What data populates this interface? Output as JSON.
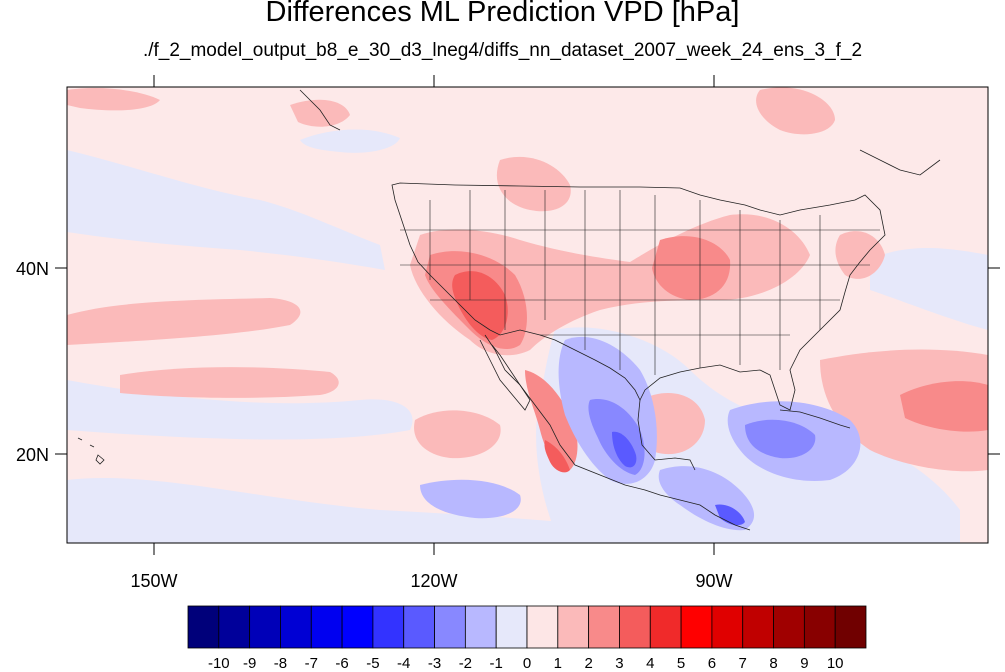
{
  "title": "Differences ML Prediction VPD [hPa]",
  "subtitle": "./f_2_model_output_b8_e_30_d3_lneg4/diffs_nn_dataset_2007_week_24_ens_3_f_2",
  "lat_labels": [
    "40N",
    "20N"
  ],
  "lon_labels": [
    "150W",
    "120W",
    "90W"
  ],
  "colorbar": {
    "labels": [
      "-10",
      "-9",
      "-8",
      "-7",
      "-6",
      "-5",
      "-4",
      "-3",
      "-2",
      "-1",
      "0",
      "1",
      "2",
      "3",
      "4",
      "5",
      "6",
      "7",
      "8",
      "9",
      "10"
    ],
    "colors": [
      "#00007a",
      "#00009a",
      "#0000b8",
      "#0000d4",
      "#0000f0",
      "#0000ff",
      "#3333ff",
      "#5a5aff",
      "#8888ff",
      "#b8b8ff",
      "#e6e8fa",
      "#fde6e6",
      "#fbbaba",
      "#f88a8a",
      "#f45c5c",
      "#f02a2a",
      "#ff0000",
      "#e00000",
      "#c00000",
      "#a00000",
      "#880000",
      "#700000"
    ]
  },
  "map_colors": {
    "background": "#fde9e9",
    "neg1": "#e6e8fa",
    "neg2": "#b8b8ff",
    "neg3": "#8888ff",
    "neg4": "#5a5aff",
    "pos2": "#fbbaba",
    "pos3": "#f88a8a",
    "pos4": "#f45c5c",
    "pos5": "#f02a2a"
  }
}
